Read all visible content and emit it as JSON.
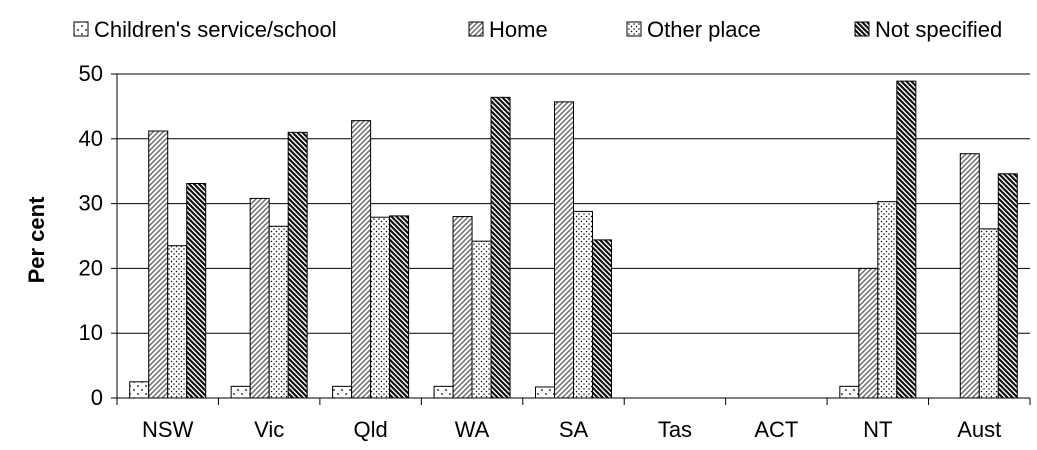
{
  "chart_data": {
    "type": "bar",
    "title": "",
    "xlabel": "",
    "ylabel": "Per cent",
    "ylim": [
      0,
      50
    ],
    "yticks": [
      0,
      10,
      20,
      30,
      40,
      50
    ],
    "grid": true,
    "legend_position": "top",
    "categories": [
      "NSW",
      "Vic",
      "Qld",
      "WA",
      "SA",
      "Tas",
      "ACT",
      "NT",
      "Aust"
    ],
    "series": [
      {
        "name": "Children's service/school",
        "pattern": "sparse-dots",
        "values": [
          2.5,
          1.8,
          1.8,
          1.8,
          1.7,
          null,
          null,
          1.8,
          null
        ]
      },
      {
        "name": "Home",
        "pattern": "diagonal-light",
        "values": [
          41.2,
          30.8,
          42.8,
          28.0,
          45.7,
          null,
          null,
          20.0,
          37.7
        ]
      },
      {
        "name": "Other place",
        "pattern": "dense-dots",
        "values": [
          23.5,
          26.5,
          27.9,
          24.2,
          28.8,
          null,
          null,
          30.3,
          26.1
        ]
      },
      {
        "name": "Not specified",
        "pattern": "diagonal-dark",
        "values": [
          33.1,
          41.0,
          28.1,
          46.4,
          24.4,
          null,
          null,
          48.9,
          34.6
        ]
      }
    ]
  }
}
